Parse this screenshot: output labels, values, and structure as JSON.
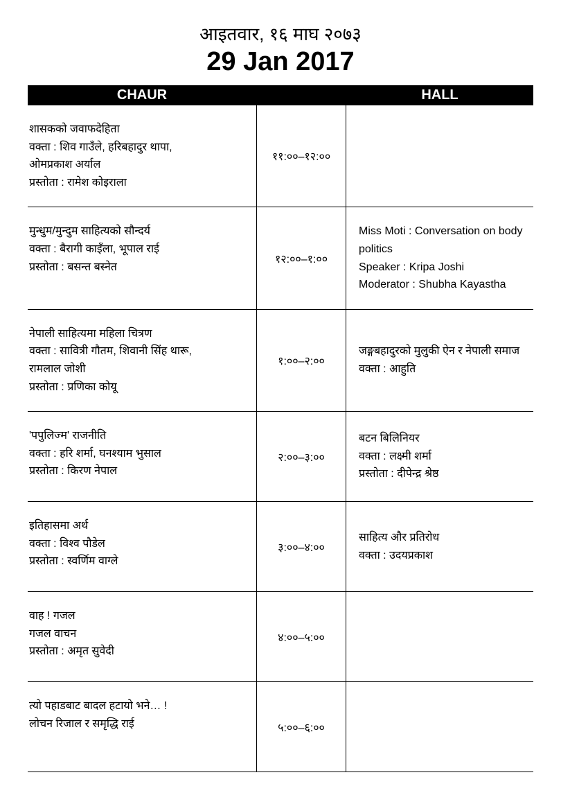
{
  "header": {
    "nepali_date": "आइतवार, १६ माघ २०७३",
    "english_date": "29 Jan 2017"
  },
  "columns": {
    "left": "CHAUR",
    "right": "HALL"
  },
  "rows": [
    {
      "chaur": [
        "शासकको जवाफदेहिता",
        "वक्ता : शिव गाउँले, हरिबहादुर थापा,",
        "ओमप्रकाश अर्याल",
        "प्रस्तोता : रामेश कोइराला"
      ],
      "time": "११:००–१२:००",
      "hall": []
    },
    {
      "chaur": [
        "मुन्धुम/मुन्दुम साहित्यको सौन्दर्य",
        "वक्ता : बैरागी काइँला, भूपाल राई",
        "प्रस्तोता : बसन्त बस्नेत"
      ],
      "time": "१२:००–१:००",
      "hall": [
        "Miss Moti : Conversation on body politics",
        "Speaker : Kripa Joshi",
        "Moderator : Shubha Kayastha"
      ]
    },
    {
      "chaur": [
        "नेपाली साहित्यमा महिला चित्रण",
        "वक्ता : सावित्री गौतम, शिवानी सिंह थारू,",
        "रामलाल जोशी",
        "प्रस्तोता : प्रणिका कोयू"
      ],
      "time": "१:००–२:००",
      "hall": [
        "जङ्गबहादुरको मुलुकी ऐन र नेपाली समाज",
        "वक्ता : आहुति"
      ]
    },
    {
      "chaur": [
        "'पपुलिज्म' राजनीति",
        "वक्ता : हरि शर्मा, घनश्याम भुसाल",
        "प्रस्तोता : किरण नेपाल"
      ],
      "time": "२:००–३:००",
      "hall": [
        "बटन बिलिनियर",
        "वक्ता : लक्ष्मी शर्मा",
        "प्रस्तोता : दीपेन्द्र श्रेष्ठ"
      ]
    },
    {
      "chaur": [
        "इतिहासमा अर्थ",
        "वक्ता : विश्व पौडेल",
        "प्रस्तोता : स्वर्णिम वाग्ले"
      ],
      "time": "३:००–४:००",
      "hall": [
        "साहित्य और प्रतिरोध",
        "वक्ता : उदयप्रकाश"
      ]
    },
    {
      "chaur": [
        "वाह ! गजल",
        "गजल वाचन",
        "प्रस्तोता : अमृत सुवेदी"
      ],
      "time": "४:००–५:००",
      "hall": []
    },
    {
      "chaur": [
        "त्यो पहाडबाट बादल हटायो भने… !",
        "लोचन रिजाल र समृद्धि राई"
      ],
      "time": "५:००–६:००",
      "hall": []
    }
  ]
}
